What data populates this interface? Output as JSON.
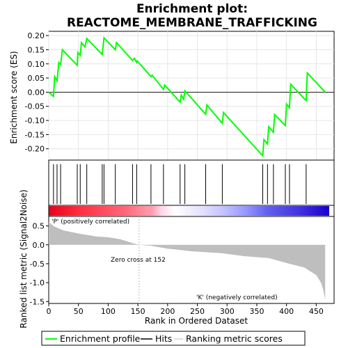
{
  "chart_data": {
    "type": "line",
    "title": "Enrichment plot:",
    "subtitle": "REACTOME_MEMBRANE_TRAFFICKING",
    "es_ylabel": "Enrichment score (ES)",
    "metric_ylabel": "Ranked list metric (Signal2Noise)",
    "xlabel": "Rank in Ordered Dataset",
    "x_ticks": [
      "0",
      "50",
      "100",
      "150",
      "200",
      "250",
      "300",
      "350",
      "400",
      "450"
    ],
    "es_yticks": [
      "0.20",
      "0.15",
      "0.10",
      "0.05",
      "0.00",
      "-0.05",
      "-0.10",
      "-0.15",
      "-0.20"
    ],
    "metric_yticks": [
      "0.5",
      "0.0",
      "-0.5",
      "-1.0",
      "-1.5"
    ],
    "xlim": [
      0,
      480
    ],
    "es_ylim": [
      -0.24,
      0.215
    ],
    "metric_ylim": [
      -1.55,
      0.75
    ],
    "enrichment_profile": {
      "name": "Enrichment profile",
      "color": "#00ff00",
      "x": [
        0,
        8,
        10,
        14,
        17,
        20,
        23,
        48,
        49,
        53,
        55,
        61,
        64,
        90,
        93,
        112,
        114,
        141,
        144,
        148,
        149,
        172,
        174,
        193,
        195,
        221,
        223,
        227,
        229,
        264,
        266,
        292,
        294,
        360,
        362,
        368,
        370,
        378,
        380,
        398,
        400,
        405,
        407,
        433,
        435,
        465
      ],
      "y": [
        0.0,
        -0.015,
        0.055,
        0.04,
        0.105,
        0.098,
        0.15,
        0.095,
        0.14,
        0.13,
        0.175,
        0.16,
        0.19,
        0.133,
        0.192,
        0.15,
        0.175,
        0.112,
        0.12,
        0.105,
        0.11,
        0.055,
        0.06,
        0.01,
        0.025,
        -0.035,
        -0.01,
        -0.025,
        0.005,
        -0.078,
        -0.045,
        -0.11,
        -0.072,
        -0.225,
        -0.168,
        -0.183,
        -0.122,
        -0.142,
        -0.079,
        -0.118,
        -0.042,
        -0.055,
        0.028,
        -0.03,
        0.068,
        0.0
      ]
    },
    "hits": {
      "name": "Hits",
      "color": "#000000",
      "x": [
        8,
        14,
        20,
        48,
        53,
        64,
        90,
        93,
        112,
        141,
        148,
        172,
        193,
        221,
        229,
        264,
        292,
        360,
        368,
        378,
        398,
        405,
        433
      ]
    },
    "ranking_metric": {
      "name": "Ranking metric scores",
      "color": "#bebebe",
      "x": [
        0,
        10,
        25,
        50,
        80,
        100,
        120,
        140,
        152,
        170,
        200,
        240,
        290,
        330,
        370,
        400,
        430,
        450,
        458,
        462,
        465
      ],
      "y": [
        0.6,
        0.48,
        0.38,
        0.3,
        0.22,
        0.2,
        0.15,
        0.05,
        0.0,
        -0.02,
        -0.1,
        -0.17,
        -0.22,
        -0.3,
        -0.35,
        -0.48,
        -0.6,
        -0.8,
        -1.0,
        -1.2,
        -1.45
      ]
    },
    "zero_cross_label": "Zero cross at 152",
    "zero_cross_x": 152,
    "positive_label": "'P' (positively correlated)",
    "negative_label": "'K' (negatively correlated)",
    "positive_color": "#ff0000",
    "negative_color": "#0000ff",
    "legend": {
      "position": "bottom",
      "items": [
        "Enrichment profile",
        "Hits",
        "Ranking metric scores"
      ]
    }
  }
}
